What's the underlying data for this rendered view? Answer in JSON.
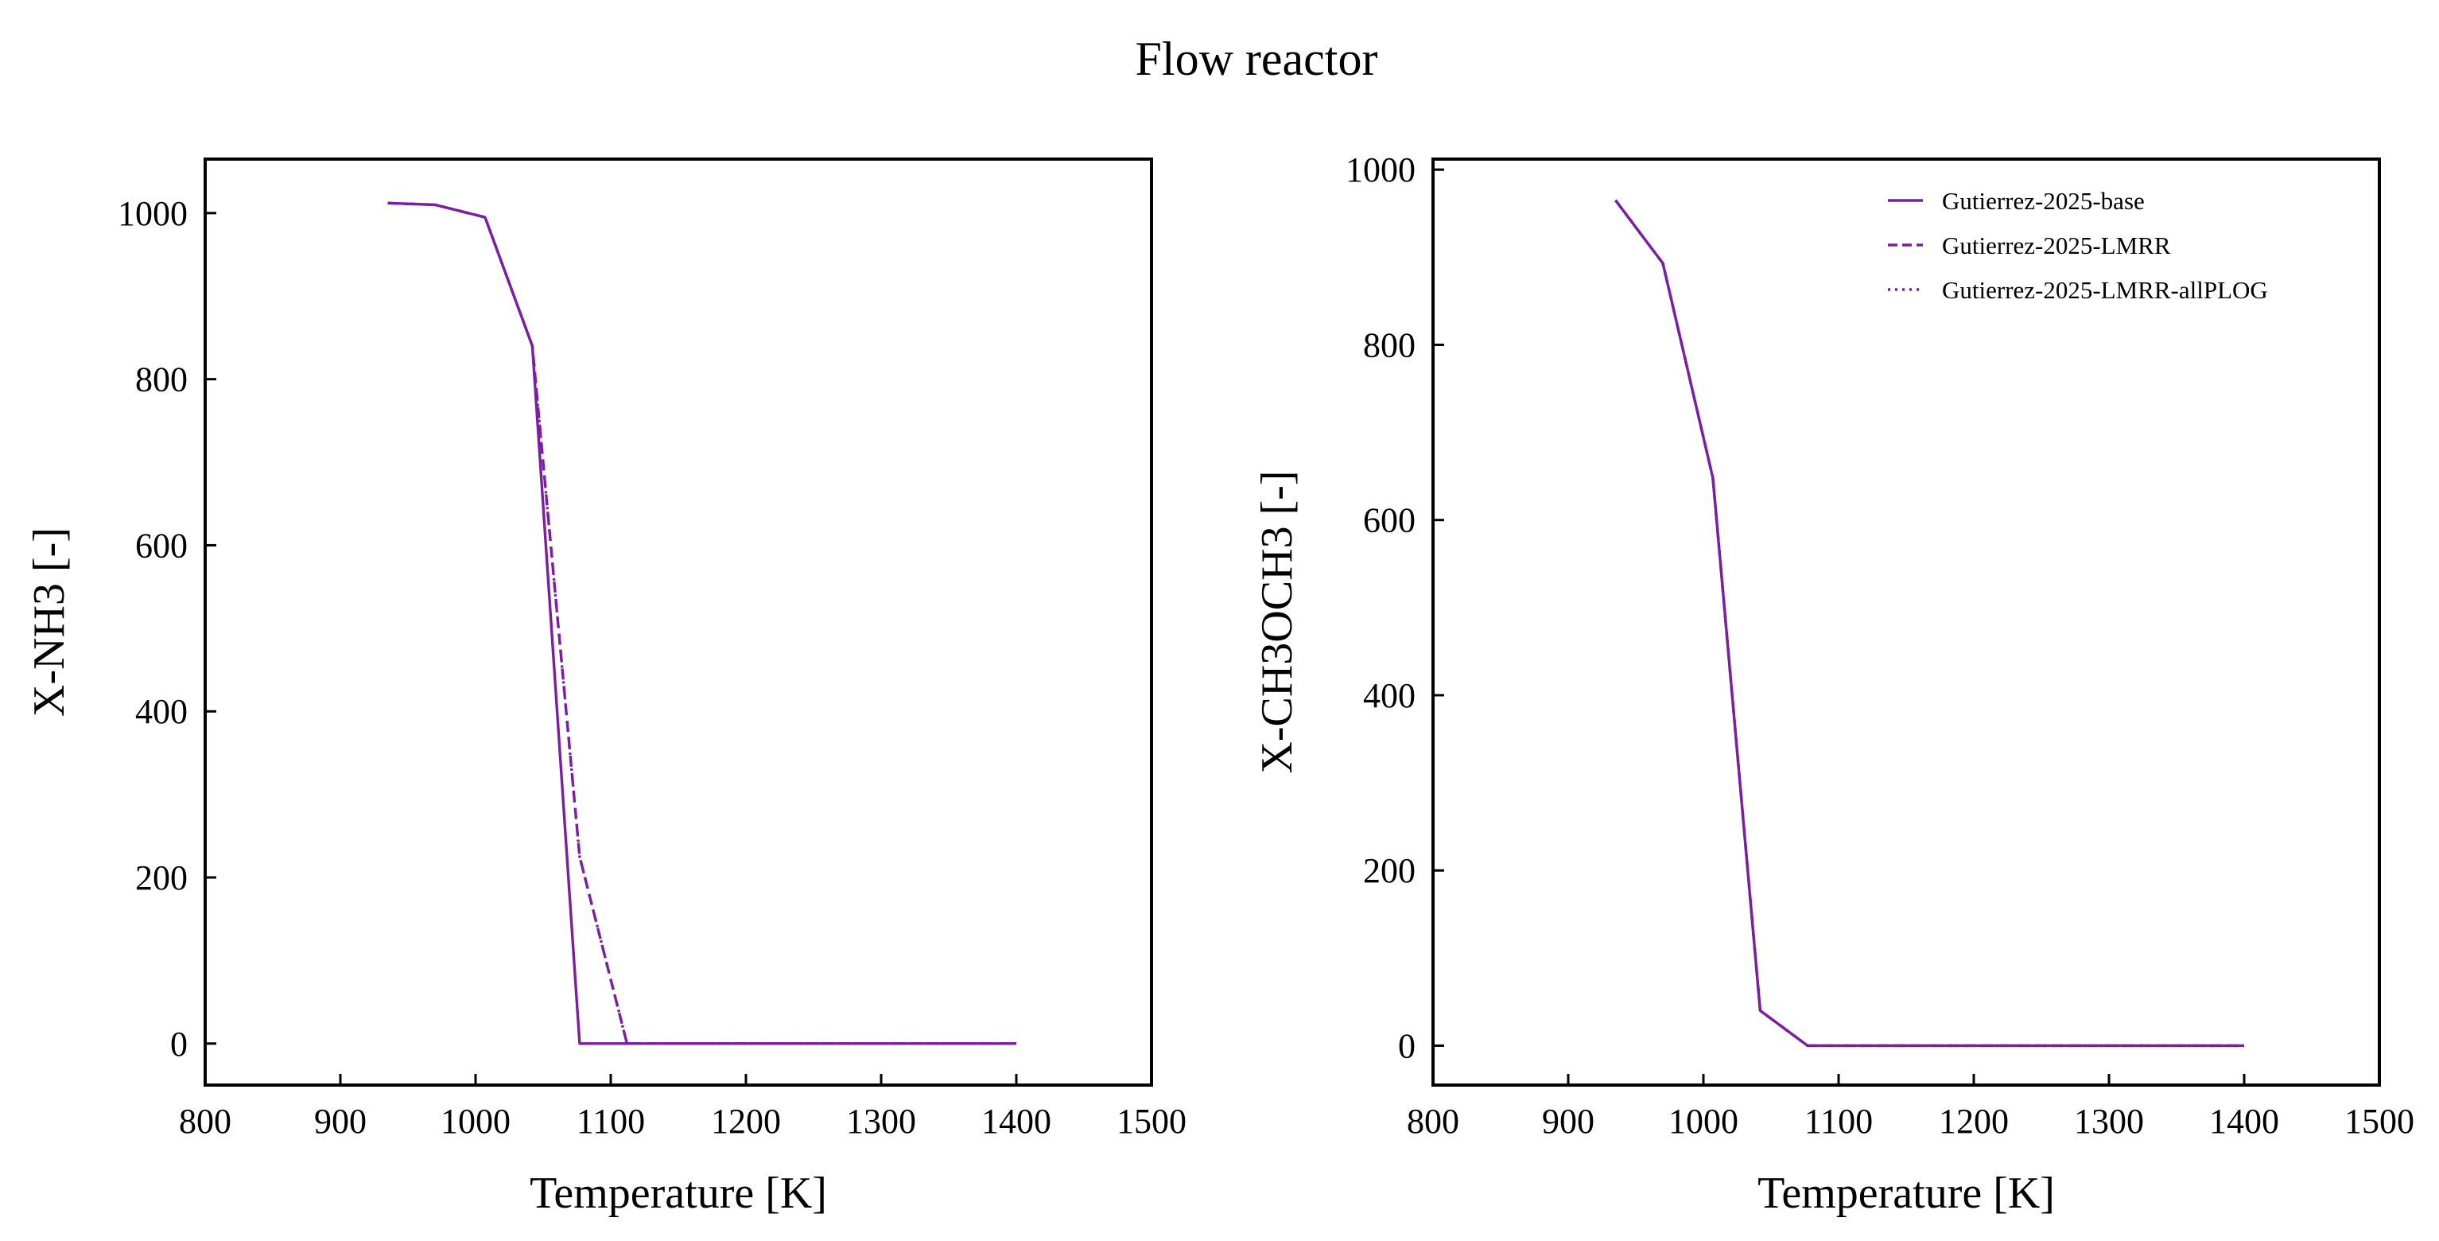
{
  "figure": {
    "title": "Flow reactor"
  },
  "colors": {
    "series": "#7a1fa2",
    "frame": "#000000",
    "background": "#ffffff"
  },
  "chart_data": [
    {
      "type": "line",
      "title": "",
      "xlabel": "Temperature [K]",
      "ylabel": "X-NH3 [-]",
      "xlim": [
        800,
        1500
      ],
      "ylim": [
        -50,
        1065
      ],
      "xticks": [
        800,
        900,
        1000,
        1100,
        1200,
        1300,
        1400,
        1500
      ],
      "yticks": [
        0,
        200,
        400,
        600,
        800,
        1000
      ],
      "grid": false,
      "legend": null,
      "series": [
        {
          "name": "Gutierrez-2025-base",
          "style": "solid",
          "x": [
            935,
            970,
            1007,
            1042,
            1077,
            1112,
            1150,
            1200,
            1250,
            1300,
            1350,
            1400
          ],
          "y": [
            1012,
            1010,
            995,
            840,
            0,
            0,
            0,
            0,
            0,
            0,
            0,
            0
          ]
        },
        {
          "name": "Gutierrez-2025-LMRR",
          "style": "dashed",
          "x": [
            935,
            970,
            1007,
            1042,
            1077,
            1112,
            1150,
            1200,
            1250,
            1300,
            1350,
            1400
          ],
          "y": [
            1012,
            1010,
            995,
            840,
            225,
            0,
            0,
            0,
            0,
            0,
            0,
            0
          ]
        },
        {
          "name": "Gutierrez-2025-LMRR-allPLOG",
          "style": "dotted",
          "x": [
            935,
            970,
            1007,
            1042,
            1077,
            1112,
            1150,
            1200,
            1250,
            1300,
            1350,
            1400
          ],
          "y": [
            1012,
            1010,
            995,
            840,
            225,
            0,
            0,
            0,
            0,
            0,
            0,
            0
          ]
        }
      ]
    },
    {
      "type": "line",
      "title": "",
      "xlabel": "Temperature [K]",
      "ylabel": "X-CH3OCH3 [-]",
      "xlim": [
        800,
        1500
      ],
      "ylim": [
        -45,
        1012
      ],
      "xticks": [
        800,
        900,
        1000,
        1100,
        1200,
        1300,
        1400,
        1500
      ],
      "yticks": [
        0,
        200,
        400,
        600,
        800,
        1000
      ],
      "grid": false,
      "legend": "top-right",
      "series": [
        {
          "name": "Gutierrez-2025-base",
          "style": "solid",
          "x": [
            935,
            970,
            1007,
            1042,
            1077,
            1112,
            1150,
            1200,
            1250,
            1300,
            1350,
            1400
          ],
          "y": [
            965,
            893,
            648,
            40,
            0,
            0,
            0,
            0,
            0,
            0,
            0,
            0
          ]
        },
        {
          "name": "Gutierrez-2025-LMRR",
          "style": "dashed",
          "x": [
            935,
            970,
            1007,
            1042,
            1077,
            1112,
            1150,
            1200,
            1250,
            1300,
            1350,
            1400
          ],
          "y": [
            965,
            893,
            648,
            40,
            0,
            0,
            0,
            0,
            0,
            0,
            0,
            0
          ]
        },
        {
          "name": "Gutierrez-2025-LMRR-allPLOG",
          "style": "dotted",
          "x": [
            935,
            970,
            1007,
            1042,
            1077,
            1112,
            1150,
            1200,
            1250,
            1300,
            1350,
            1400
          ],
          "y": [
            965,
            893,
            648,
            40,
            0,
            0,
            0,
            0,
            0,
            0,
            0,
            0
          ]
        }
      ]
    }
  ]
}
